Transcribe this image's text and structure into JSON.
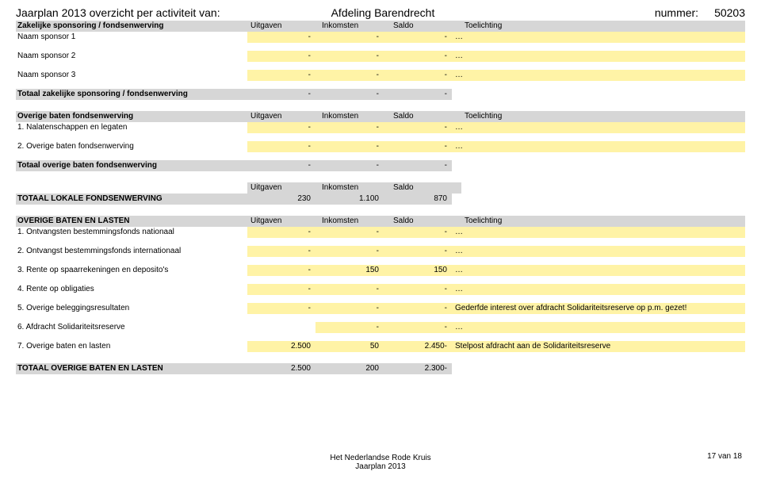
{
  "header": {
    "left": "Jaarplan 2013 overzicht per activiteit van:",
    "center": "Afdeling Barendrecht",
    "right_label": "nummer:",
    "right_num": "50203"
  },
  "colhdr": {
    "uitgaven": "Uitgaven",
    "inkomsten": "Inkomsten",
    "saldo": "Saldo",
    "toelichting": "Toelichting"
  },
  "sec1_title": "Zakelijke sponsoring / fondsenwerving",
  "sec1_r1": {
    "label": "Naam sponsor 1",
    "u": "-",
    "i": "-",
    "s": "-",
    "t": "…"
  },
  "sec1_r2": {
    "label": "Naam sponsor 2",
    "u": "-",
    "i": "-",
    "s": "-",
    "t": "…"
  },
  "sec1_r3": {
    "label": "Naam sponsor 3",
    "u": "-",
    "i": "-",
    "s": "-",
    "t": "…"
  },
  "sec1_total": {
    "label": "Totaal zakelijke sponsoring / fondsenwerving",
    "u": "-",
    "i": "-",
    "s": "-"
  },
  "sec2_title": "Overige baten fondsenwerving",
  "sec2_r1": {
    "label": "1. Nalatenschappen en legaten",
    "u": "-",
    "i": "-",
    "s": "-",
    "t": "…"
  },
  "sec2_r2": {
    "label": "2. Overige baten fondsenwerving",
    "u": "-",
    "i": "-",
    "s": "-",
    "t": "…"
  },
  "sec2_total": {
    "label": "Totaal overige baten fondsenwerving",
    "u": "-",
    "i": "-",
    "s": "-"
  },
  "grand1": {
    "label": "TOTAAL LOKALE FONDSENWERVING",
    "u": "230",
    "i": "1.100",
    "s": "870"
  },
  "sec3_title": "OVERIGE BATEN EN LASTEN",
  "sec3_r1": {
    "label": "1. Ontvangsten bestemmingsfonds nationaal",
    "u": "-",
    "i": "-",
    "s": "-",
    "t": "…"
  },
  "sec3_r2": {
    "label": "2. Ontvangst bestemmingsfonds internationaal",
    "u": "-",
    "i": "-",
    "s": "-",
    "t": "…"
  },
  "sec3_r3": {
    "label": "3. Rente op spaarrekeningen en deposito's",
    "u": "-",
    "i": "150",
    "s": "150",
    "t": "…"
  },
  "sec3_r4": {
    "label": "4. Rente op obligaties",
    "u": "-",
    "i": "-",
    "s": "-",
    "t": "…"
  },
  "sec3_r5": {
    "label": "5. Overige beleggingsresultaten",
    "u": "-",
    "i": "-",
    "s": "-",
    "t": "Gederfde interest over afdracht Solidariteitsreserve op p.m. gezet!"
  },
  "sec3_r6": {
    "label": "6. Afdracht Solidariteitsreserve",
    "u": "",
    "i": "-",
    "s": "-",
    "t": "…"
  },
  "sec3_r7": {
    "label": "7. Overige baten en lasten",
    "u": "2.500",
    "i": "50",
    "s": "2.450-",
    "t": "Stelpost afdracht aan de Solidariteitsreserve"
  },
  "grand2": {
    "label": "TOTAAL OVERIGE BATEN EN LASTEN",
    "u": "2.500",
    "i": "200",
    "s": "2.300-"
  },
  "footer": {
    "line1": "Het Nederlandse Rode Kruis",
    "line2": "Jaarplan 2013",
    "pagenum": "17 van 18"
  }
}
